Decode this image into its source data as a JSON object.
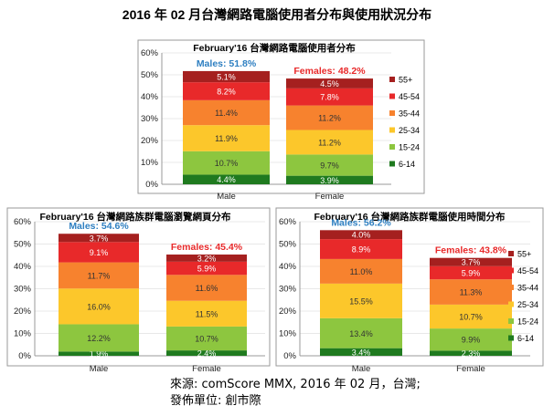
{
  "page": {
    "title": "2016 年 02 月台灣網路電腦使用者分布與使用狀況分布",
    "source_line": "來源: comScore MMX, 2016 年 02 月，台灣;",
    "publisher_line": "發佈單位:  創市際"
  },
  "chart_data": [
    {
      "type": "bar",
      "stacked": true,
      "title": "February'16 台灣網路電腦使用者分布",
      "categories": [
        "Male",
        "Female"
      ],
      "totals_labels": [
        "Males: 51.8%",
        "Females: 48.2%"
      ],
      "ylim": [
        0,
        60
      ],
      "yticks": [
        "0%",
        "10%",
        "20%",
        "30%",
        "40%",
        "50%",
        "60%"
      ],
      "series": [
        {
          "name": "6-14",
          "color": "#1f7a1f",
          "values": [
            4.4,
            3.9
          ],
          "labels": [
            "4.4%",
            "3.9%"
          ]
        },
        {
          "name": "15-24",
          "color": "#8dc63f",
          "values": [
            10.7,
            9.7
          ],
          "labels": [
            "10.7%",
            "9.7%"
          ]
        },
        {
          "name": "25-34",
          "color": "#fcc72b",
          "values": [
            11.9,
            11.2
          ],
          "labels": [
            "11.9%",
            "11.2%"
          ]
        },
        {
          "name": "35-44",
          "color": "#f7822e",
          "values": [
            11.4,
            11.2
          ],
          "labels": [
            "11.4%",
            "11.2%"
          ]
        },
        {
          "name": "45-54",
          "color": "#e8292a",
          "values": [
            8.2,
            7.8
          ],
          "labels": [
            "8.2%",
            "7.8%"
          ]
        },
        {
          "name": "55+",
          "color": "#a5201f",
          "values": [
            5.1,
            4.5
          ],
          "labels": [
            "5.1%",
            "4.5%"
          ]
        }
      ],
      "legend": "right"
    },
    {
      "type": "bar",
      "stacked": true,
      "title": "February'16 台灣網路族群電腦瀏覽網頁分布",
      "categories": [
        "Male",
        "Female"
      ],
      "totals_labels": [
        "Males: 54.6%",
        "Females: 45.4%"
      ],
      "ylim": [
        0,
        60
      ],
      "yticks": [
        "0%",
        "10%",
        "20%",
        "30%",
        "40%",
        "50%",
        "60%"
      ],
      "series": [
        {
          "name": "6-14",
          "color": "#1f7a1f",
          "values": [
            1.9,
            2.4
          ],
          "labels": [
            "1.9%",
            "2.4%"
          ]
        },
        {
          "name": "15-24",
          "color": "#8dc63f",
          "values": [
            12.2,
            10.7
          ],
          "labels": [
            "12.2%",
            "10.7%"
          ]
        },
        {
          "name": "25-34",
          "color": "#fcc72b",
          "values": [
            16.0,
            11.5
          ],
          "labels": [
            "16.0%",
            "11.5%"
          ]
        },
        {
          "name": "35-44",
          "color": "#f7822e",
          "values": [
            11.7,
            11.6
          ],
          "labels": [
            "11.7%",
            "11.6%"
          ]
        },
        {
          "name": "45-54",
          "color": "#e8292a",
          "values": [
            9.1,
            5.9
          ],
          "labels": [
            "9.1%",
            "5.9%"
          ]
        },
        {
          "name": "55+",
          "color": "#a5201f",
          "values": [
            3.7,
            3.2
          ],
          "labels": [
            "3.7%",
            "3.2%"
          ]
        }
      ],
      "legend": "none"
    },
    {
      "type": "bar",
      "stacked": true,
      "title": "February'16 台灣網路族群電腦使用時間分布",
      "categories": [
        "Male",
        "Female"
      ],
      "totals_labels": [
        "Males: 56.2%",
        "Females: 43.8%"
      ],
      "ylim": [
        0,
        60
      ],
      "yticks": [
        "0%",
        "10%",
        "20%",
        "30%",
        "40%",
        "50%",
        "60%"
      ],
      "series": [
        {
          "name": "6-14",
          "color": "#1f7a1f",
          "values": [
            3.4,
            2.3
          ],
          "labels": [
            "3.4%",
            "2.3%"
          ]
        },
        {
          "name": "15-24",
          "color": "#8dc63f",
          "values": [
            13.4,
            9.9
          ],
          "labels": [
            "13.4%",
            "9.9%"
          ]
        },
        {
          "name": "25-34",
          "color": "#fcc72b",
          "values": [
            15.5,
            10.7
          ],
          "labels": [
            "15.5%",
            "10.7%"
          ]
        },
        {
          "name": "35-44",
          "color": "#f7822e",
          "values": [
            11.0,
            11.3
          ],
          "labels": [
            "11.0%",
            "11.3%"
          ]
        },
        {
          "name": "45-54",
          "color": "#e8292a",
          "values": [
            8.9,
            5.9
          ],
          "labels": [
            "8.9%",
            "5.9%"
          ]
        },
        {
          "name": "55+",
          "color": "#a5201f",
          "values": [
            4.0,
            3.7
          ],
          "labels": [
            "4.0%",
            "3.7%"
          ]
        }
      ],
      "legend": "right"
    }
  ],
  "style": {
    "male_total_color": "#2e7fc1",
    "female_total_color": "#e8292a",
    "frame_color": "#9a9a9a",
    "axis_label_color": "#222222"
  }
}
